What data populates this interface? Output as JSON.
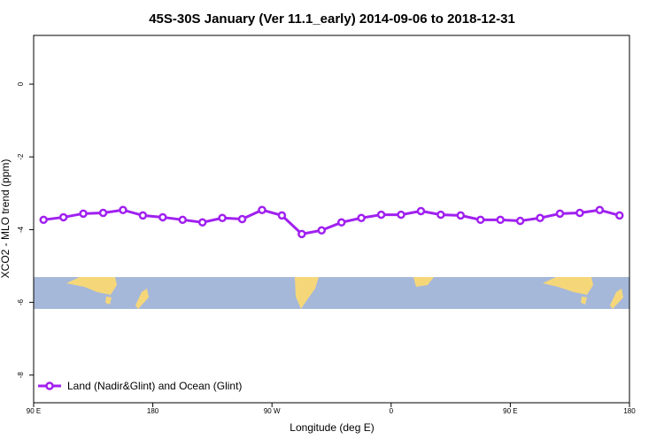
{
  "chart_data": {
    "type": "line",
    "title": "45S-30S January (Ver 11.1_early)   2014-09-06 to 2018-12-31",
    "x_label": "Longitude (deg E)",
    "y_label": "XCO2 - MLO trend (ppm)",
    "x": [
      97.5,
      112.5,
      127.5,
      142.5,
      157.5,
      172.5,
      187.5,
      202.5,
      217.5,
      232.5,
      247.5,
      262.5,
      277.5,
      292.5,
      307.5,
      322.5,
      337.5,
      352.5,
      367.5,
      382.5,
      397.5,
      412.5,
      427.5,
      442.5,
      457.5,
      472.5,
      487.5,
      502.5,
      517.5,
      532.5
    ],
    "series": [
      {
        "name": "Land (Nadir&Glint) and Ocean (Glint)",
        "color": "#a020f0",
        "values": [
          -3.73,
          -3.66,
          -3.56,
          -3.54,
          -3.46,
          -3.61,
          -3.66,
          -3.73,
          -3.8,
          -3.68,
          -3.71,
          -3.46,
          -3.61,
          -4.12,
          -4.02,
          -3.8,
          -3.68,
          -3.59,
          -3.59,
          -3.49,
          -3.59,
          -3.61,
          -3.73,
          -3.73,
          -3.76,
          -3.68,
          -3.56,
          -3.54,
          -3.46,
          -3.61
        ]
      }
    ],
    "xlim": [
      90,
      540
    ],
    "xticks": [
      {
        "value": 90,
        "label": "90 E"
      },
      {
        "value": 180,
        "label": "180"
      },
      {
        "value": 270,
        "label": "90 W"
      },
      {
        "value": 360,
        "label": "0"
      },
      {
        "value": 450,
        "label": "90 E"
      },
      {
        "value": 540,
        "label": "180"
      }
    ],
    "ylim": [
      -8.76,
      1.34
    ],
    "yticks": [
      0,
      -2,
      -4,
      -6,
      -8
    ],
    "legend": "bottom-left"
  }
}
